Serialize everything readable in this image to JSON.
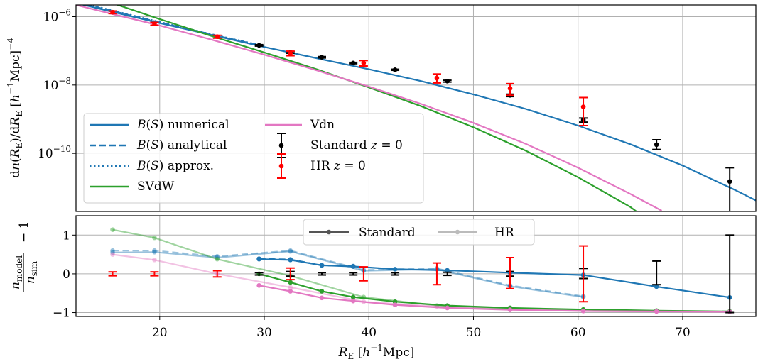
{
  "chart_data": {
    "type": "line",
    "xlabel": "R_E [h^-1 Mpc]",
    "xlim": [
      12,
      77
    ],
    "x_ticks": [
      "20",
      "30",
      "40",
      "50",
      "60",
      "70"
    ],
    "x_tick_values": [
      20,
      30,
      40,
      50,
      60,
      70
    ],
    "grid": true,
    "top": {
      "ylabel": "dn(R_E)/dR_E [h^-1 Mpc]^-4",
      "yscale": "log",
      "ylim": [
        2e-12,
        2.2e-06
      ],
      "y_ticks": [
        "10^-6",
        "10^-8",
        "10^-10"
      ],
      "y_tick_values": [
        1e-06,
        1e-08,
        1e-10
      ],
      "legend_location": "lower-left",
      "series": [
        {
          "name": "B(S) numerical",
          "style": "solid",
          "color": "#1f77b4",
          "x": [
            12,
            15,
            20,
            25,
            30,
            35,
            40,
            45,
            50,
            55,
            60,
            65,
            70,
            75,
            77
          ],
          "y": [
            2.5e-06,
            1.5e-06,
            6.5e-07,
            2.9e-07,
            1.3e-07,
            6.1e-08,
            2.9e-08,
            1.3e-08,
            5.3e-09,
            2e-09,
            6.5e-10,
            1.85e-10,
            4.4e-11,
            8.5e-12,
            4.2e-12
          ]
        },
        {
          "name": "B(S) analytical",
          "style": "dashed",
          "color": "#1f77b4",
          "x": [
            12,
            15,
            20,
            25,
            30
          ],
          "y": [
            2.6e-06,
            1.6e-06,
            6.8e-07,
            3e-07,
            1.35e-07
          ]
        },
        {
          "name": "B(S) approx.",
          "style": "dotted",
          "color": "#1f77b4",
          "x": [
            12,
            15,
            20,
            25,
            30
          ],
          "y": [
            2.7e-06,
            1.65e-06,
            7e-07,
            3.05e-07,
            1.38e-07
          ]
        },
        {
          "name": "SVdW",
          "style": "solid",
          "color": "#2ca02c",
          "x": [
            12,
            15,
            20,
            25,
            30,
            35,
            40,
            45,
            50,
            55,
            60,
            65,
            69
          ],
          "y": [
            5e-06,
            2.8e-06,
            8.5e-07,
            2.7e-07,
            9e-08,
            2.9e-08,
            8.5e-09,
            2.4e-09,
            5.8e-10,
            1.2e-10,
            2e-11,
            2.7e-12,
            3.4e-13
          ]
        },
        {
          "name": "Vdn",
          "style": "solid",
          "color": "#e377c2",
          "x": [
            12,
            15,
            20,
            25,
            30,
            35,
            40,
            45,
            50,
            55,
            60,
            65,
            68
          ],
          "y": [
            2.2e-06,
            1.3e-06,
            5.5e-07,
            2.1e-07,
            7.7e-08,
            2.7e-08,
            9e-09,
            2.8e-09,
            7.8e-10,
            1.9e-10,
            3.8e-11,
            6.5e-12,
            2.1e-12
          ]
        }
      ],
      "errorbars": [
        {
          "name": "Standard z = 0",
          "color": "#000000",
          "x": [
            29.5,
            32.5,
            35.5,
            38.5,
            42.5,
            47.5,
            53.5,
            60.5,
            67.5,
            74.5
          ],
          "y": [
            1.45e-07,
            9e-08,
            6.5e-08,
            4.4e-08,
            2.8e-08,
            1.3e-08,
            5e-09,
            9.5e-10,
            1.8e-10,
            1.5e-11
          ],
          "lo": [
            1.38e-07,
            8.5e-08,
            6.2e-08,
            4.2e-08,
            2.7e-08,
            1.22e-08,
            4.6e-09,
            8.2e-10,
            1.3e-10,
            2e-12
          ],
          "hi": [
            1.52e-07,
            9.5e-08,
            6.8e-08,
            4.6e-08,
            2.9e-08,
            1.38e-08,
            5.4e-09,
            1.08e-09,
            2.5e-10,
            3.8e-11
          ]
        },
        {
          "name": "HR z = 0",
          "color": "#ff0000",
          "x": [
            15.5,
            19.5,
            25.5,
            32.5,
            39.5,
            46.5,
            53.5,
            60.5
          ],
          "y": [
            1.35e-06,
            6.2e-07,
            2.6e-07,
            8.5e-08,
            4.4e-08,
            1.6e-08,
            8e-09,
            2.3e-09
          ],
          "lo": [
            1.23e-06,
            5.6e-07,
            2.35e-07,
            7.2e-08,
            3.6e-08,
            1.15e-08,
            5e-09,
            6.5e-10
          ],
          "hi": [
            1.47e-06,
            6.8e-07,
            2.85e-07,
            9.8e-08,
            5.2e-08,
            2.1e-08,
            1.1e-08,
            4.3e-09
          ]
        }
      ]
    },
    "bottom": {
      "ylabel": "n_model / n_sim − 1",
      "ylim": [
        -1.1,
        1.5
      ],
      "y_ticks": [
        "−1",
        "0",
        "1"
      ],
      "y_tick_values": [
        -1,
        0,
        1
      ],
      "legend_location": "upper-center",
      "legend": [
        "Standard",
        "HR"
      ],
      "errorbars": [
        {
          "name": "Standard",
          "color": "#000000",
          "x": [
            29.5,
            32.5,
            35.5,
            38.5,
            42.5,
            47.5,
            53.5,
            60.5,
            67.5,
            74.5
          ],
          "lo": [
            -0.03,
            -0.06,
            -0.03,
            -0.03,
            -0.03,
            -0.04,
            -0.06,
            -0.12,
            -0.28,
            -1.0
          ],
          "hi": [
            0.03,
            0.06,
            0.03,
            0.03,
            0.03,
            0.04,
            0.06,
            0.14,
            0.33,
            1.0
          ]
        },
        {
          "name": "HR",
          "color": "#ff0000",
          "x": [
            15.5,
            19.5,
            25.5,
            32.5,
            39.5,
            46.5,
            53.5,
            60.5
          ],
          "lo": [
            -0.05,
            -0.05,
            -0.08,
            -0.15,
            -0.18,
            -0.28,
            -0.38,
            -0.72
          ],
          "hi": [
            0.05,
            0.05,
            0.08,
            0.15,
            0.18,
            0.28,
            0.42,
            0.72
          ]
        }
      ],
      "series": [
        {
          "group": "Standard",
          "model": "B(S) numerical",
          "style": "solid",
          "color": "#1f77b4",
          "x": [
            29.5,
            32.5,
            35.5,
            38.5,
            42.5,
            47.5,
            53.5,
            60.5,
            67.5,
            74.5
          ],
          "y": [
            0.38,
            0.36,
            0.22,
            0.19,
            0.12,
            0.09,
            0.03,
            -0.03,
            -0.33,
            -0.61
          ]
        },
        {
          "group": "Standard",
          "model": "B(S) analytical",
          "style": "dashed",
          "color": "#1f77b4",
          "x": [
            29.5,
            32.5,
            35.5,
            38.5
          ],
          "y": [
            0.39,
            0.37,
            0.22,
            0.2
          ]
        },
        {
          "group": "Standard",
          "model": "SVdW",
          "style": "solid",
          "color": "#2ca02c",
          "x": [
            29.5,
            32.5,
            35.5,
            38.5,
            42.5,
            47.5,
            53.5,
            60.5,
            67.5,
            74.5
          ],
          "y": [
            0.0,
            -0.22,
            -0.45,
            -0.6,
            -0.72,
            -0.82,
            -0.88,
            -0.92,
            -0.95,
            -0.97
          ]
        },
        {
          "group": "Standard",
          "model": "Vdn",
          "style": "solid",
          "color": "#e377c2",
          "x": [
            29.5,
            32.5,
            35.5,
            38.5,
            42.5,
            47.5,
            53.5,
            60.5,
            67.5,
            74.5
          ],
          "y": [
            -0.3,
            -0.45,
            -0.62,
            -0.7,
            -0.8,
            -0.88,
            -0.93,
            -0.96,
            -0.97,
            -0.98
          ]
        },
        {
          "group": "HR",
          "model": "B(S) numerical",
          "style": "solid",
          "color": "#1f77b4",
          "x": [
            15.5,
            19.5,
            25.5,
            32.5,
            39.5,
            46.5,
            53.5,
            60.5
          ],
          "y": [
            0.55,
            0.56,
            0.42,
            0.58,
            0.08,
            0.12,
            -0.32,
            -0.6
          ]
        },
        {
          "group": "HR",
          "model": "B(S) analytical",
          "style": "dashed",
          "color": "#1f77b4",
          "x": [
            15.5,
            19.5,
            25.5,
            32.5,
            39.5,
            46.5,
            53.5,
            60.5
          ],
          "y": [
            0.6,
            0.6,
            0.45,
            0.6,
            0.1,
            0.14,
            -0.3,
            -0.58
          ]
        },
        {
          "group": "HR",
          "model": "SVdW",
          "style": "solid",
          "color": "#2ca02c",
          "x": [
            15.5,
            19.5,
            25.5,
            32.5,
            39.5,
            46.5,
            53.5,
            60.5
          ],
          "y": [
            1.14,
            0.93,
            0.38,
            -0.05,
            -0.6,
            -0.82,
            -0.9,
            -0.95
          ]
        },
        {
          "group": "HR",
          "model": "Vdn",
          "style": "solid",
          "color": "#e377c2",
          "x": [
            15.5,
            19.5,
            25.5,
            32.5,
            39.5,
            46.5,
            53.5,
            60.5
          ],
          "y": [
            0.5,
            0.36,
            0.0,
            -0.35,
            -0.72,
            -0.84,
            -0.9,
            -0.94
          ]
        }
      ]
    }
  }
}
